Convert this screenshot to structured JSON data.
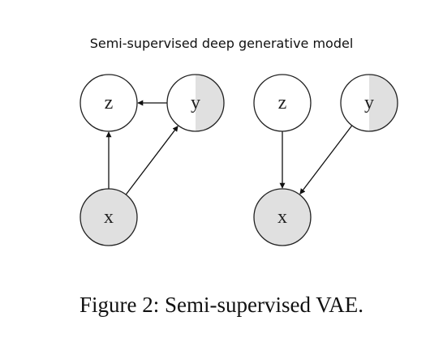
{
  "diagram": {
    "title": "Semi-supervised deep generative model",
    "colors": {
      "observed_fill": "#e0e0e0",
      "node_stroke": "#222222",
      "node_fill": "#ffffff",
      "edge": "#111111"
    },
    "panels": [
      {
        "name": "inference-model",
        "nodes": [
          {
            "id": "z",
            "label": "z",
            "shading": "none"
          },
          {
            "id": "y",
            "label": "y",
            "shading": "half"
          },
          {
            "id": "x",
            "label": "x",
            "shading": "full"
          }
        ],
        "edges": [
          {
            "from": "y",
            "to": "z"
          },
          {
            "from": "x",
            "to": "z"
          },
          {
            "from": "x",
            "to": "y"
          }
        ]
      },
      {
        "name": "generative-model",
        "nodes": [
          {
            "id": "z",
            "label": "z",
            "shading": "none"
          },
          {
            "id": "y",
            "label": "y",
            "shading": "half"
          },
          {
            "id": "x",
            "label": "x",
            "shading": "full"
          }
        ],
        "edges": [
          {
            "from": "z",
            "to": "x"
          },
          {
            "from": "y",
            "to": "x"
          }
        ]
      }
    ]
  },
  "caption": "Figure 2: Semi-supervised VAE."
}
